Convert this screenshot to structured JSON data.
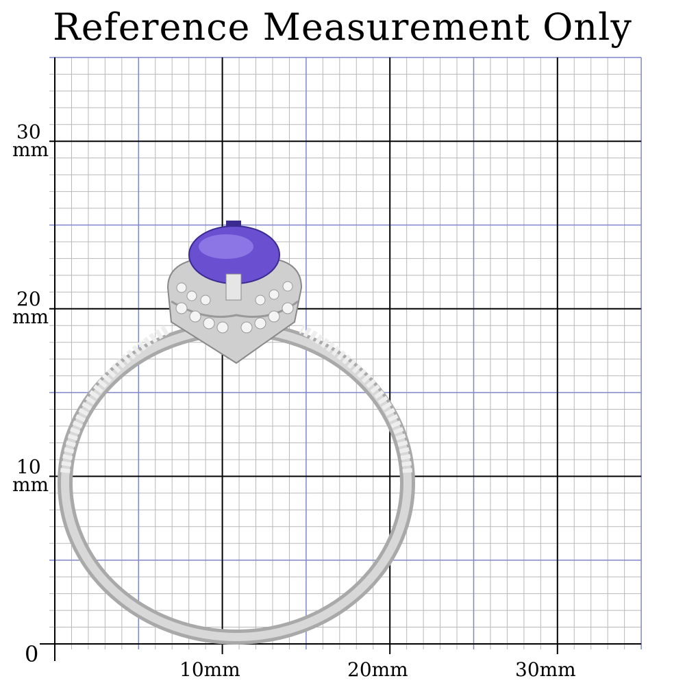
{
  "title": "Reference Measurement Only",
  "y_axis": {
    "labels": [
      {
        "value": 30,
        "number": "30",
        "unit": "mm"
      },
      {
        "value": 20,
        "number": "20",
        "unit": "mm"
      },
      {
        "value": 10,
        "number": "10",
        "unit": "mm"
      }
    ],
    "origin": "0"
  },
  "x_axis": {
    "labels": [
      {
        "value": 10,
        "text": "10mm"
      },
      {
        "value": 20,
        "text": "20mm"
      },
      {
        "value": 30,
        "text": "30mm"
      }
    ]
  },
  "grid": {
    "minor_step_mm": 1,
    "mid_step_mm": 5,
    "major_step_mm": 10,
    "x_max_mm": 35,
    "y_max_mm": 35
  },
  "colors": {
    "minor": "#b8b8b8",
    "mid": "#7f86cc",
    "major": "#000000",
    "gem": "#6a4fd0",
    "metal": "#c9c9c9"
  },
  "subject": {
    "icon": "ring-photo"
  }
}
